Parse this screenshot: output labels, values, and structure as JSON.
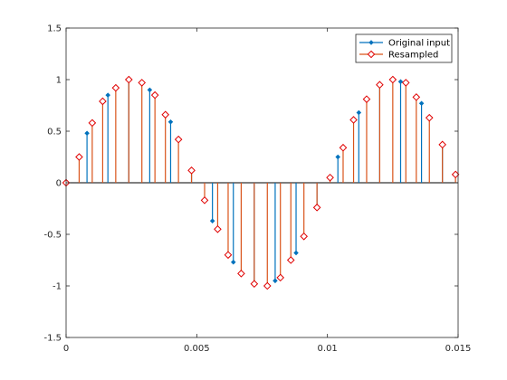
{
  "chart_data": {
    "type": "stem",
    "title": "",
    "xlabel": "",
    "ylabel": "",
    "xlim": [
      0,
      0.015
    ],
    "ylim": [
      -1.5,
      1.5
    ],
    "grid": false,
    "legend_placement": "top-right",
    "x_ticks": [
      "0",
      "0.005",
      "0.01",
      "0.015"
    ],
    "x_tick_values": [
      0,
      0.005,
      0.01,
      0.015
    ],
    "y_ticks": [
      "-1.5",
      "-1",
      "-0.5",
      "0",
      "0.5",
      "1",
      "1.5"
    ],
    "y_tick_values": [
      -1.5,
      -1,
      -0.5,
      0,
      0.5,
      1,
      1.5
    ],
    "series": [
      {
        "name": "Original input",
        "color": "#0072BD",
        "marker": "dot",
        "x": [
          0,
          0.0008,
          0.0016,
          0.0024,
          0.0032,
          0.004,
          0.0048,
          0.0056,
          0.0064,
          0.0072,
          0.008,
          0.0088,
          0.0096,
          0.0104,
          0.0112,
          0.012,
          0.0128,
          0.0136,
          0.0144
        ],
        "y": [
          0,
          0.48,
          0.85,
          1.0,
          0.9,
          0.59,
          0.12,
          -0.37,
          -0.77,
          -0.98,
          -0.95,
          -0.68,
          -0.25,
          0.25,
          0.68,
          0.95,
          0.98,
          0.77,
          0.37
        ]
      },
      {
        "name": "Resampled",
        "color": "#D95319",
        "marker": "diamond",
        "x": [
          0,
          0.0005,
          0.001,
          0.0014,
          0.0019,
          0.0024,
          0.0029,
          0.0034,
          0.0038,
          0.0043,
          0.0048,
          0.0053,
          0.0058,
          0.0062,
          0.0067,
          0.0072,
          0.0077,
          0.0082,
          0.0086,
          0.0091,
          0.0096,
          0.0101,
          0.0106,
          0.011,
          0.0115,
          0.012,
          0.0125,
          0.013,
          0.0134,
          0.0139,
          0.0144,
          0.0149
        ],
        "y": [
          0,
          0.25,
          0.58,
          0.79,
          0.92,
          1.0,
          0.97,
          0.85,
          0.66,
          0.42,
          0.12,
          -0.17,
          -0.45,
          -0.7,
          -0.88,
          -0.98,
          -1.0,
          -0.92,
          -0.75,
          -0.52,
          -0.24,
          0.05,
          0.34,
          0.61,
          0.81,
          0.95,
          1.0,
          0.97,
          0.83,
          0.63,
          0.37,
          0.08
        ]
      }
    ]
  }
}
